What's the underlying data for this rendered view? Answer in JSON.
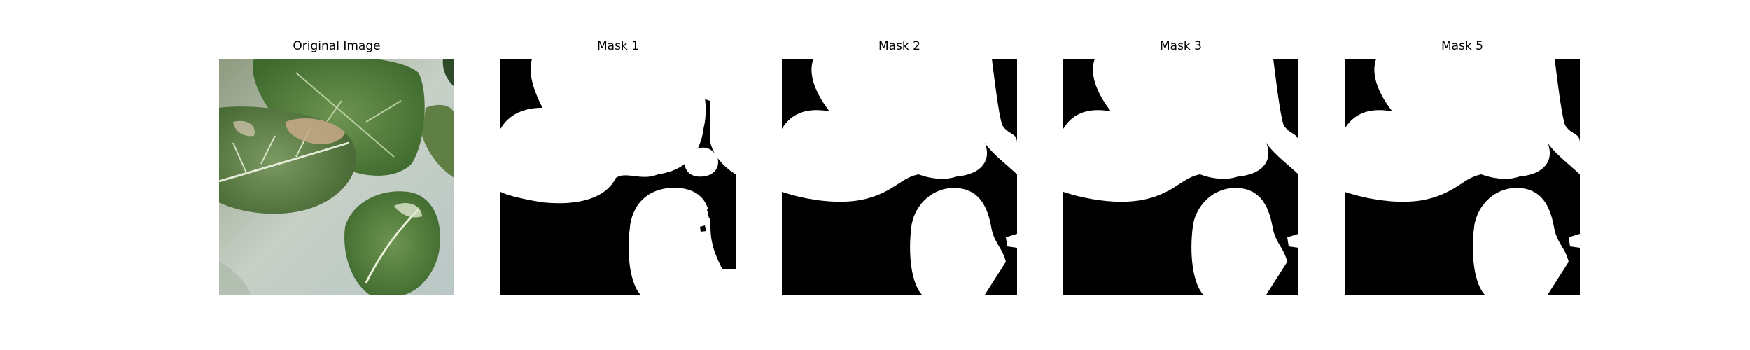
{
  "panels": [
    {
      "title": "Original Image",
      "kind": "photo"
    },
    {
      "title": "Mask 1",
      "kind": "mask"
    },
    {
      "title": "Mask 2",
      "kind": "mask"
    },
    {
      "title": "Mask 3",
      "kind": "mask"
    },
    {
      "title": "Mask 5",
      "kind": "mask"
    }
  ],
  "colors": {
    "mask_foreground": "#ffffff",
    "mask_background": "#000000",
    "leaf_dark": "#4f7a3a",
    "leaf_mid": "#6f8f52",
    "leaf_light": "#9fb285",
    "background_photo": "#c8d1c6"
  }
}
